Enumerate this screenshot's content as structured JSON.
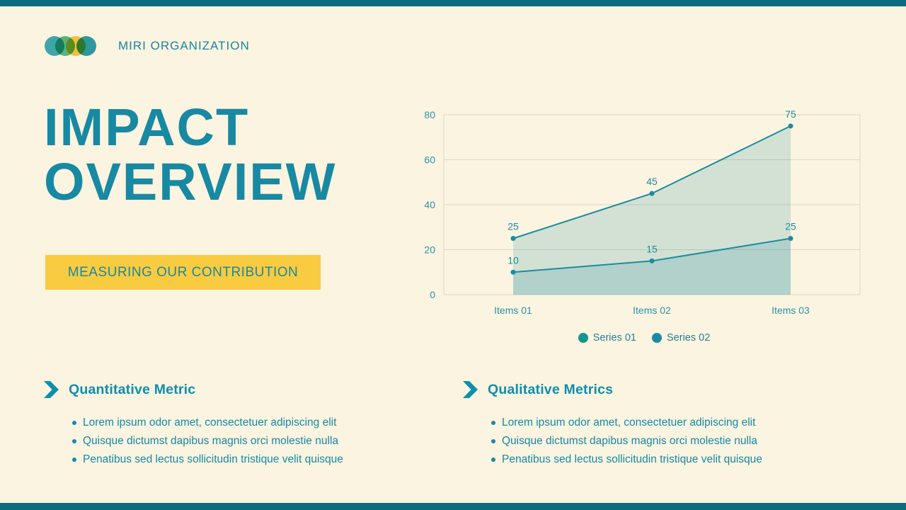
{
  "logo": {
    "text": "MIRI ORGANIZATION",
    "mark": "four-overlapping-circles",
    "mark_colors": [
      "#3FAEBE",
      "#5CBB8F",
      "#F5C945",
      "#2E9FB5"
    ]
  },
  "title": {
    "text": "IMPACT OVERVIEW"
  },
  "banner": {
    "label": "MEASURING OUR CONTRIBUTION",
    "background": "#F9CB40"
  },
  "chart_data": {
    "type": "line",
    "categories": [
      "Items 01",
      "Items 02",
      "Items 03"
    ],
    "series": [
      {
        "name": "Series 01",
        "values": [
          25,
          45,
          75
        ]
      },
      {
        "name": "Series 02",
        "values": [
          10,
          15,
          25
        ]
      }
    ],
    "ylim": [
      0,
      80
    ],
    "yticks": [
      0,
      20,
      40,
      60,
      80
    ],
    "grid": true,
    "area_fill": true,
    "legend_position": "bottom",
    "colors": {
      "line": "#1C8CA0",
      "fill": "rgba(28,140,160,0.18)",
      "axis_label": "#2E92A8",
      "grid": "#DCD7C5",
      "data_label": "#1C8CA0"
    }
  },
  "sections": [
    {
      "heading": "Quantitative Metric",
      "bullets": [
        "Lorem ipsum odor amet, consectetuer adipiscing elit",
        "Quisque dictumst dapibus magnis orci molestie nulla",
        "Penatibus sed lectus sollicitudin tristique velit quisque"
      ]
    },
    {
      "heading": "Qualitative Metrics",
      "bullets": [
        "Lorem ipsum odor amet, consectetuer adipiscing elit",
        "Quisque dictumst dapibus magnis orci molestie nulla",
        "Penatibus sed lectus sollicitudin tristique velit quisque"
      ]
    }
  ],
  "icons": {
    "section_arrow": "chevron-right-arrow",
    "legend_marker": "filled-circle"
  },
  "theme": {
    "background": "#FAF4E0",
    "teal": "#1889A2",
    "dark_teal_bar": "#0D6B7D",
    "yellow": "#F9CB40"
  }
}
